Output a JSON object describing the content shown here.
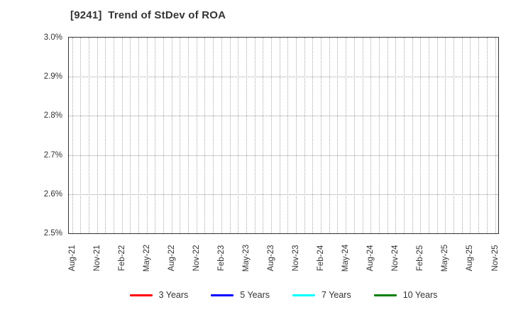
{
  "chart_data": {
    "type": "line",
    "title": "[9241]  Trend of StDev of ROA",
    "xlabel": "",
    "ylabel": "",
    "y_unit": "%",
    "ylim": [
      2.5,
      3.0
    ],
    "y_tick_labels": [
      "2.5%",
      "2.6%",
      "2.7%",
      "2.8%",
      "2.9%",
      "3.0%"
    ],
    "x_tick_labels": [
      "Aug-21",
      "Nov-21",
      "Feb-22",
      "May-22",
      "Aug-22",
      "Nov-22",
      "Feb-23",
      "May-23",
      "Aug-23",
      "Nov-23",
      "Feb-24",
      "May-24",
      "Aug-24",
      "Nov-24",
      "Feb-25",
      "May-25",
      "Aug-25",
      "Nov-25"
    ],
    "x_tick_interval_months": 3,
    "minor_vertical_grid": "monthly",
    "grid_style": "dotted",
    "legend_position": "bottom",
    "plot_empty": true,
    "series": [
      {
        "name": "3 Years",
        "color": "#ff0000",
        "values": []
      },
      {
        "name": "5 Years",
        "color": "#0000ff",
        "values": []
      },
      {
        "name": "7 Years",
        "color": "#00ffff",
        "values": []
      },
      {
        "name": "10 Years",
        "color": "#008000",
        "values": []
      }
    ]
  },
  "colors": {
    "background": "#ffffff",
    "axis_border": "#333333",
    "gridline": "#999999",
    "text": "#333333"
  }
}
